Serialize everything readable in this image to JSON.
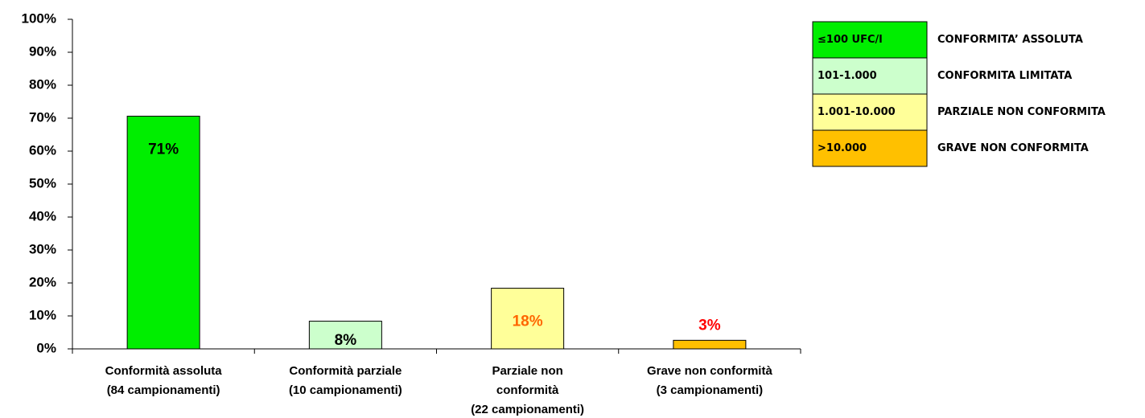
{
  "chart_data": {
    "type": "bar",
    "categories": [
      [
        "Conformità assoluta",
        "(84 campionamenti)"
      ],
      [
        "Conformità parziale",
        "(10 campionamenti)"
      ],
      [
        "Parziale non",
        "conformità",
        "(22 campionamenti)"
      ],
      [
        "Grave non conformità",
        "(3 campionamenti)"
      ]
    ],
    "values": [
      70.6,
      8.4,
      18.4,
      2.6
    ],
    "value_labels": [
      "71%",
      "8%",
      "18%",
      "3%"
    ],
    "colors": [
      "#00ee00",
      "#ccffcc",
      "#ffff99",
      "#ffc000"
    ],
    "value_label_colors": [
      "#000000",
      "#000000",
      "#ff6600",
      "#ff0000"
    ],
    "ylim": [
      0,
      100
    ],
    "yticks": [
      {
        "value": 0,
        "label": "0%"
      },
      {
        "value": 10,
        "label": "10%"
      },
      {
        "value": 20,
        "label": "20%"
      },
      {
        "value": 30,
        "label": "30%"
      },
      {
        "value": 40,
        "label": "40%"
      },
      {
        "value": 50,
        "label": "50%"
      },
      {
        "value": 60,
        "label": "60%"
      },
      {
        "value": 70,
        "label": "70%"
      },
      {
        "value": 80,
        "label": "80%"
      },
      {
        "value": 90,
        "label": "90%"
      },
      {
        "value": 100,
        "label": "100%"
      }
    ],
    "legend": [
      {
        "range": "≤100 UFC/l",
        "label": "CONFORMITA’ ASSOLUTA",
        "color": "#00ee00"
      },
      {
        "range": "101-1.000",
        "label": "CONFORMITA LIMITATA",
        "color": "#ccffcc"
      },
      {
        "range": "1.001-10.000",
        "label": "PARZIALE NON CONFORMITA",
        "color": "#ffff99"
      },
      {
        "range": ">10.000",
        "label": "GRAVE NON CONFORMITA",
        "color": "#ffc000"
      }
    ]
  }
}
